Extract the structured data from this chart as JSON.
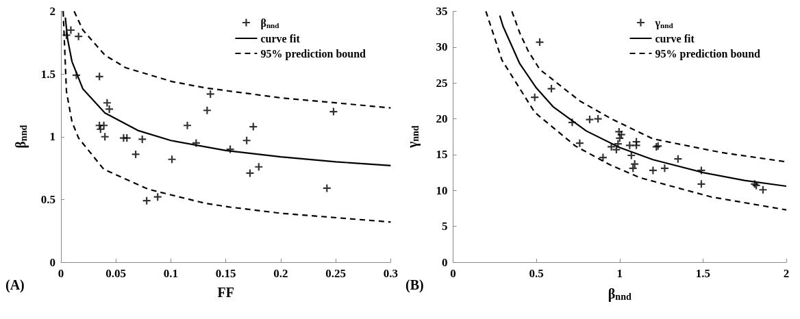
{
  "chart_data": [
    {
      "type": "scatter",
      "xlabel": "FF",
      "ylabel": "β$_{nnd}$",
      "annotations": [
        "(A)"
      ],
      "xlim": [
        0,
        0.3
      ],
      "xticks": [
        0,
        0.05,
        0.1,
        0.15,
        0.2,
        0.25,
        0.3
      ],
      "ylim": [
        0,
        2
      ],
      "yticks": [
        0,
        0.5,
        1,
        1.5,
        2
      ],
      "grid": false,
      "legend": "top right",
      "series": [
        {
          "name": "β$_{nnd}$",
          "marker": "cross",
          "color": "#000000",
          "x": [
            0.005,
            0.009,
            0.016,
            0.014,
            0.035,
            0.042,
            0.044,
            0.035,
            0.039,
            0.036,
            0.04,
            0.057,
            0.06,
            0.074,
            0.068,
            0.101,
            0.078,
            0.088,
            0.115,
            0.123,
            0.133,
            0.136,
            0.154,
            0.169,
            0.175,
            0.18,
            0.172,
            0.242,
            0.248
          ],
          "values": [
            1.81,
            1.85,
            1.8,
            1.49,
            1.48,
            1.27,
            1.22,
            1.09,
            1.09,
            1.06,
            1.0,
            0.99,
            0.99,
            0.98,
            0.86,
            0.82,
            0.49,
            0.52,
            1.09,
            0.95,
            1.21,
            1.34,
            0.9,
            0.97,
            1.08,
            0.76,
            0.71,
            0.59,
            1.2
          ]
        },
        {
          "name": "curve fit",
          "type": "line",
          "marker": "none",
          "line_style": "solid",
          "color": "#000000",
          "x": [
            0.004,
            0.006,
            0.01,
            0.02,
            0.04,
            0.07,
            0.1,
            0.15,
            0.2,
            0.25,
            0.3
          ],
          "values": [
            1.95,
            1.78,
            1.6,
            1.38,
            1.19,
            1.05,
            0.97,
            0.89,
            0.84,
            0.8,
            0.77
          ]
        },
        {
          "name": "95% prediction bound",
          "type": "line",
          "marker": "none",
          "line_style": "dashed",
          "color": "#000000",
          "x": [
            0.012,
            0.02,
            0.04,
            0.059,
            0.101,
            0.131,
            0.2,
            0.3
          ],
          "values": [
            2,
            1.85,
            1.65,
            1.55,
            1.44,
            1.39,
            1.31,
            1.23
          ]
        },
        {
          "type": "line",
          "marker": "none",
          "line_style": "dashed",
          "color": "#000000",
          "x": [
            0.002,
            0.005,
            0.01,
            0.016,
            0.039,
            0.08,
            0.131,
            0.153,
            0.2,
            0.3
          ],
          "values": [
            2,
            1.36,
            1.12,
            0.99,
            0.74,
            0.58,
            0.47,
            0.44,
            0.39,
            0.32
          ]
        }
      ]
    },
    {
      "type": "scatter",
      "xlabel": "β$_{nnd}$",
      "ylabel": "γ$_{nnd}$",
      "annotations": [
        "(B)"
      ],
      "xlim": [
        0,
        2
      ],
      "xticks": [
        0,
        0.5,
        1,
        1.5,
        2
      ],
      "ylim": [
        0,
        35
      ],
      "yticks": [
        0,
        5,
        10,
        15,
        20,
        25,
        30,
        35
      ],
      "grid": false,
      "legend": "top right",
      "series": [
        {
          "name": "γ$_{nnd}$",
          "marker": "cross",
          "color": "#000000",
          "x": [
            0.52,
            0.59,
            0.49,
            0.715,
            0.82,
            0.87,
            0.76,
            0.9,
            0.996,
            1.01,
            1.0,
            0.99,
            0.95,
            0.98,
            1.06,
            1.1,
            1.1,
            1.07,
            1.09,
            1.08,
            1.2,
            1.22,
            1.23,
            1.27,
            1.35,
            1.49,
            1.49,
            1.81,
            1.82,
            1.86
          ],
          "values": [
            30.7,
            24.2,
            23.0,
            19.5,
            19.9,
            20.0,
            16.6,
            14.6,
            18.2,
            17.8,
            17.3,
            16.5,
            16.1,
            15.7,
            16.3,
            16.8,
            16.3,
            14.9,
            13.7,
            13.1,
            12.8,
            16.1,
            16.2,
            13.1,
            14.4,
            12.8,
            10.9,
            10.9,
            10.7,
            10.1
          ]
        },
        {
          "name": "curve fit",
          "type": "line",
          "marker": "none",
          "line_style": "solid",
          "color": "#000000",
          "x": [
            0.28,
            0.3,
            0.4,
            0.5,
            0.6,
            0.8,
            1,
            1.2,
            1.5,
            1.75,
            2
          ],
          "values": [
            34.4,
            32.9,
            27.7,
            24.3,
            21.7,
            18.3,
            16,
            14.3,
            12.5,
            11.4,
            10.6
          ]
        },
        {
          "name": "95% prediction bound",
          "type": "line",
          "marker": "none",
          "line_style": "dashed",
          "color": "#000000",
          "x": [
            0.353,
            0.4,
            0.45,
            0.52,
            0.76,
            0.95,
            1.2,
            1.61,
            2
          ],
          "values": [
            35,
            32,
            29.5,
            26.9,
            22.5,
            20.0,
            17.2,
            15.3,
            14.0
          ]
        },
        {
          "type": "line",
          "marker": "none",
          "line_style": "dashed",
          "color": "#000000",
          "x": [
            0.197,
            0.293,
            0.49,
            0.735,
            0.94,
            1.12,
            1.55,
            2
          ],
          "values": [
            35,
            28.2,
            20.9,
            16.2,
            13.6,
            11.8,
            9.1,
            7.3
          ]
        }
      ]
    }
  ]
}
